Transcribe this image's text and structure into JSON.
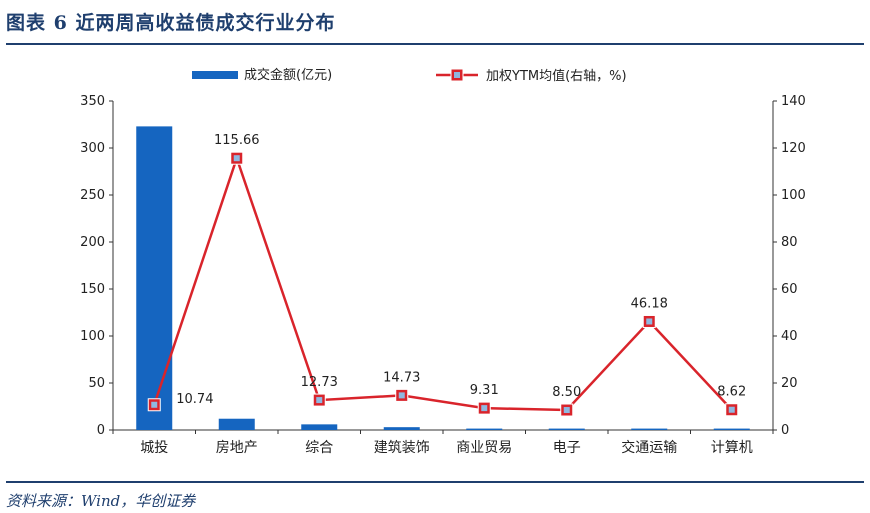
{
  "header": {
    "title": "图表 6   近两周高收益债成交行业分布"
  },
  "footer": {
    "source": "资料来源：Wind，华创证券"
  },
  "chart_data": {
    "type": "bar+line",
    "categories": [
      "城投",
      "房地产",
      "综合",
      "建筑装饰",
      "商业贸易",
      "电子",
      "交通运输",
      "计算机"
    ],
    "series": [
      {
        "name": "成交金额(亿元)",
        "type": "bar",
        "axis": "left",
        "color": "#1565c0",
        "values": [
          323,
          12,
          6,
          3,
          1.5,
          1.5,
          1.5,
          1.5
        ]
      },
      {
        "name": "加权YTM均值(右轴，%)",
        "type": "line",
        "axis": "right",
        "color": "#d9242b",
        "values": [
          10.74,
          115.66,
          12.73,
          14.73,
          9.31,
          8.5,
          46.18,
          8.62
        ],
        "labels": [
          "10.74",
          "115.66",
          "12.73",
          "14.73",
          "9.31",
          "8.50",
          "46.18",
          "8.62"
        ]
      }
    ],
    "y_left": {
      "min": 0,
      "max": 350,
      "ticks": [
        "0",
        "50",
        "100",
        "150",
        "200",
        "250",
        "300",
        "350"
      ]
    },
    "y_right": {
      "min": 0,
      "max": 140,
      "ticks": [
        "0",
        "20",
        "40",
        "60",
        "80",
        "100",
        "120",
        "140"
      ]
    },
    "legend": {
      "position": "top"
    },
    "grid": false
  }
}
